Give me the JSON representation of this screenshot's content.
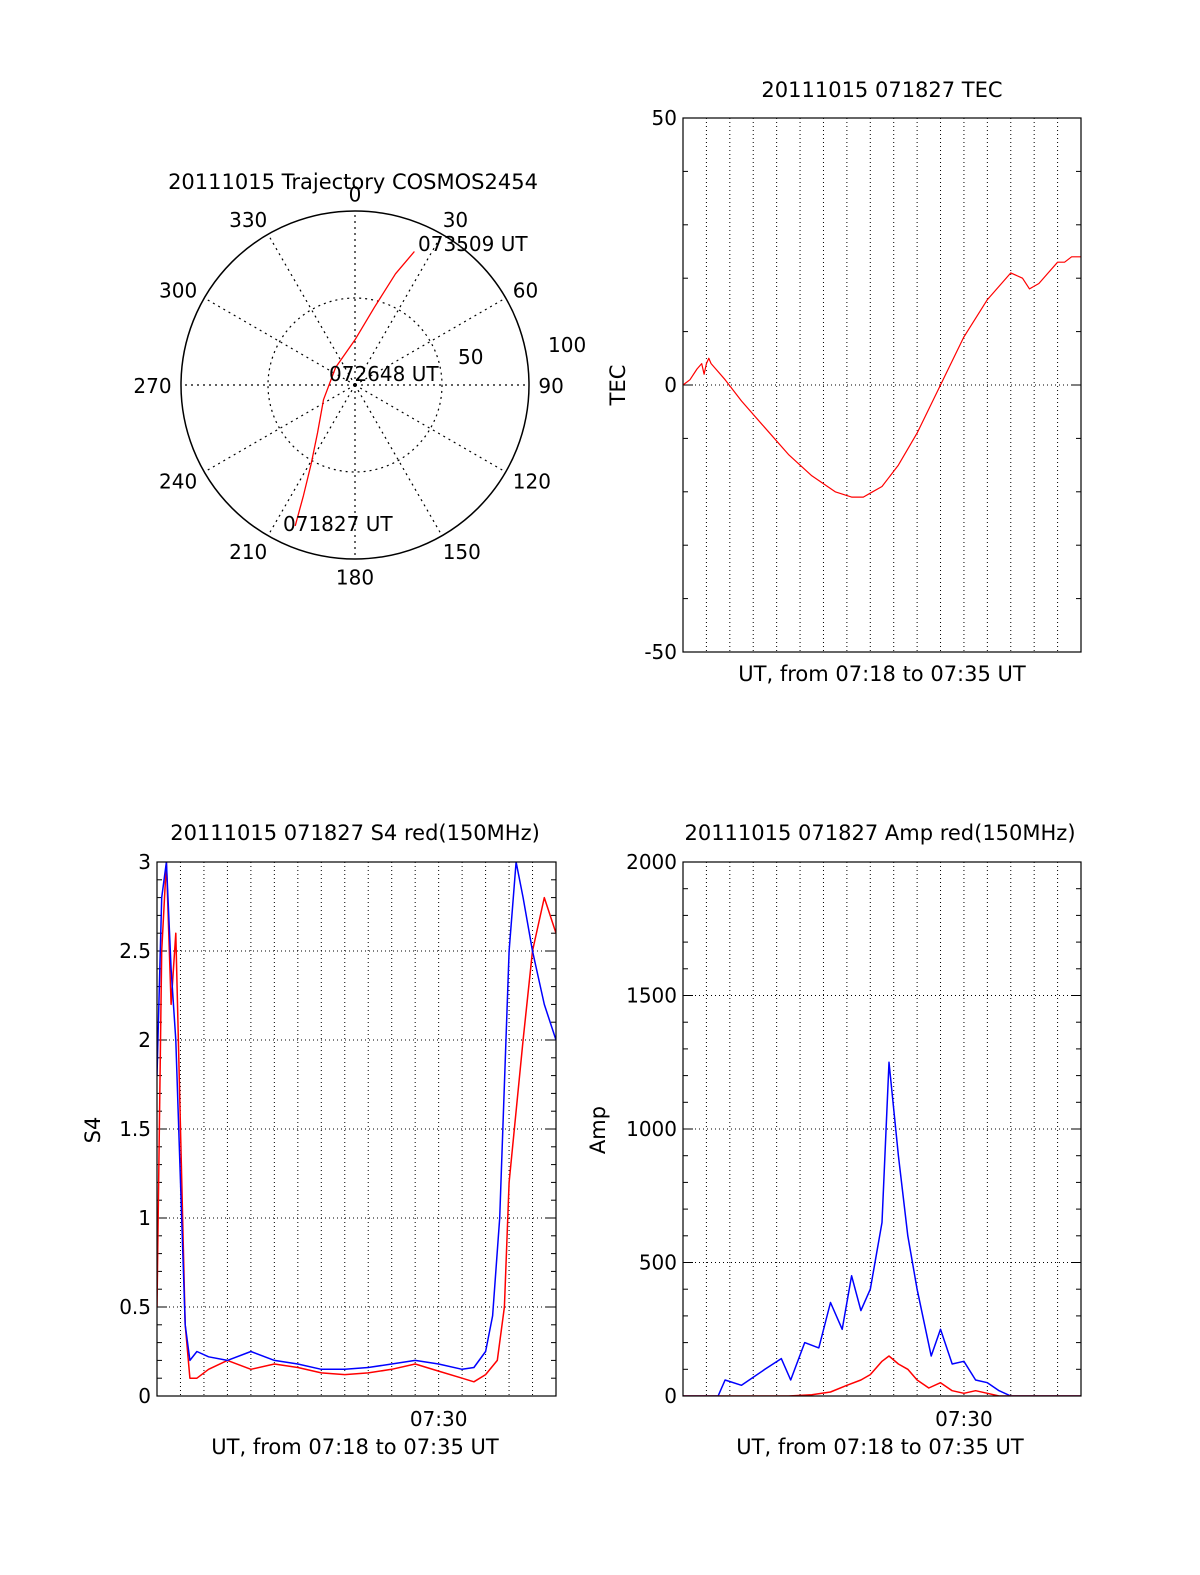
{
  "colors": {
    "red": "#ff0000",
    "blue": "#0000ff",
    "axis": "#000000",
    "grid": "#000000",
    "background": "#ffffff"
  },
  "chart_data": [
    {
      "id": "trajectory",
      "type": "polar",
      "title": "20111015 Trajectory COSMOS2454",
      "angle_labels": [
        "0",
        "30",
        "60",
        "90",
        "120",
        "150",
        "180",
        "210",
        "240",
        "270",
        "300",
        "330"
      ],
      "radius_labels": [
        "50",
        "100"
      ],
      "radius_max": 100,
      "grid": true,
      "track": [
        {
          "az": 203,
          "r": 88
        },
        {
          "az": 205,
          "r": 70
        },
        {
          "az": 209,
          "r": 52
        },
        {
          "az": 218,
          "r": 35
        },
        {
          "az": 245,
          "r": 20
        },
        {
          "az": 312,
          "r": 15
        },
        {
          "az": 0,
          "r": 26
        },
        {
          "az": 14,
          "r": 46
        },
        {
          "az": 20,
          "r": 68
        },
        {
          "az": 24,
          "r": 84
        }
      ],
      "annotations": [
        {
          "text": "073509 UT",
          "az": 27,
          "r": 88
        },
        {
          "text": "072648 UT",
          "az": 270,
          "r": 0
        },
        {
          "text": "071827 UT",
          "az": 200,
          "r": 82
        }
      ],
      "series_color": "red"
    },
    {
      "id": "tec",
      "type": "line",
      "title": "20111015 071827 TEC",
      "xlabel": "UT, from 07:18 to 07:35 UT",
      "ylabel": "TEC",
      "xlim": [
        0,
        17
      ],
      "ylim": [
        -50,
        50
      ],
      "yticks": [
        -50,
        0,
        50
      ],
      "grid": true,
      "series": [
        {
          "color": "red",
          "x": [
            0,
            0.3,
            0.6,
            0.8,
            0.9,
            1.0,
            1.1,
            1.2,
            1.4,
            1.8,
            2.5,
            3.5,
            4.5,
            5.5,
            6.5,
            7.2,
            7.7,
            8.1,
            8.5,
            9.2,
            10.0,
            11.0,
            12.0,
            13.0,
            14.0,
            14.5,
            14.8,
            15.2,
            15.6,
            16.0,
            16.3,
            16.6,
            17.0
          ],
          "y": [
            0,
            1,
            3,
            4,
            2,
            4,
            5,
            4,
            3,
            1,
            -3,
            -8,
            -13,
            -17,
            -20,
            -21,
            -21,
            -20,
            -19,
            -15,
            -9,
            0,
            9,
            16,
            21,
            20,
            18,
            19,
            21,
            23,
            23,
            24,
            24
          ]
        }
      ]
    },
    {
      "id": "s4",
      "type": "line",
      "title": "20111015 071827 S4 red(150MHz)",
      "xlabel": "UT, from 07:18 to 07:35 UT",
      "ylabel": "S4",
      "xlim": [
        0,
        17
      ],
      "ylim": [
        0,
        3
      ],
      "yticks": [
        0,
        0.5,
        1,
        1.5,
        2,
        2.5,
        3
      ],
      "xtick_labels": [
        {
          "x": 12,
          "label": "07:30"
        }
      ],
      "grid": true,
      "series": [
        {
          "color": "red",
          "x": [
            0,
            0.2,
            0.4,
            0.6,
            0.8,
            1.0,
            1.2,
            1.4,
            1.7,
            2.2,
            3,
            4,
            5,
            6,
            7,
            8,
            9,
            10,
            11,
            12,
            13,
            13.5,
            14,
            14.5,
            14.8,
            15,
            15.3,
            15.6,
            16,
            16.5,
            17
          ],
          "y": [
            0.5,
            2.5,
            3,
            2.2,
            2.6,
            1.5,
            0.4,
            0.1,
            0.1,
            0.15,
            0.2,
            0.15,
            0.18,
            0.16,
            0.13,
            0.12,
            0.13,
            0.15,
            0.18,
            0.14,
            0.1,
            0.08,
            0.12,
            0.2,
            0.5,
            1.2,
            1.6,
            2.0,
            2.5,
            2.8,
            2.6
          ]
        },
        {
          "color": "blue",
          "x": [
            0,
            0.2,
            0.4,
            0.6,
            0.8,
            1.0,
            1.2,
            1.4,
            1.7,
            2.2,
            3,
            4,
            5,
            6,
            7,
            8,
            9,
            10,
            11,
            12,
            13,
            13.5,
            14,
            14.3,
            14.6,
            15,
            15.3,
            15.6,
            16,
            16.5,
            17
          ],
          "y": [
            1.8,
            2.8,
            3,
            2.4,
            2.0,
            1.2,
            0.4,
            0.2,
            0.25,
            0.22,
            0.2,
            0.25,
            0.2,
            0.18,
            0.15,
            0.15,
            0.16,
            0.18,
            0.2,
            0.18,
            0.15,
            0.16,
            0.25,
            0.45,
            1.0,
            2.5,
            3,
            2.8,
            2.5,
            2.2,
            2.0
          ]
        }
      ]
    },
    {
      "id": "amp",
      "type": "line",
      "title": "20111015 071827 Amp red(150MHz)",
      "xlabel": "UT, from 07:18 to 07:35 UT",
      "ylabel": "Amp",
      "xlim": [
        0,
        17
      ],
      "ylim": [
        0,
        2000
      ],
      "yticks": [
        0,
        500,
        1000,
        1500,
        2000
      ],
      "xtick_labels": [
        {
          "x": 12,
          "label": "07:30"
        }
      ],
      "grid": true,
      "series": [
        {
          "color": "blue",
          "x": [
            0,
            1.5,
            1.8,
            2.5,
            3.5,
            4.2,
            4.6,
            5.2,
            5.8,
            6.3,
            6.8,
            7.2,
            7.6,
            8.0,
            8.5,
            8.8,
            9.2,
            9.6,
            10.0,
            10.6,
            11.0,
            11.5,
            12.0,
            12.5,
            13.0,
            13.5,
            14.0,
            17.0
          ],
          "y": [
            0,
            0,
            60,
            40,
            100,
            140,
            60,
            200,
            180,
            350,
            250,
            450,
            320,
            400,
            650,
            1250,
            900,
            600,
            400,
            150,
            250,
            120,
            130,
            60,
            50,
            20,
            0,
            0
          ]
        },
        {
          "color": "red",
          "x": [
            0,
            4.5,
            5.5,
            6.3,
            7.0,
            7.6,
            8.0,
            8.5,
            8.8,
            9.2,
            9.6,
            10.0,
            10.5,
            11.0,
            11.5,
            12.0,
            12.5,
            13.0,
            13.5,
            17.0
          ],
          "y": [
            0,
            0,
            5,
            15,
            40,
            60,
            80,
            130,
            150,
            120,
            100,
            60,
            30,
            50,
            20,
            10,
            20,
            10,
            0,
            0
          ]
        }
      ]
    }
  ]
}
